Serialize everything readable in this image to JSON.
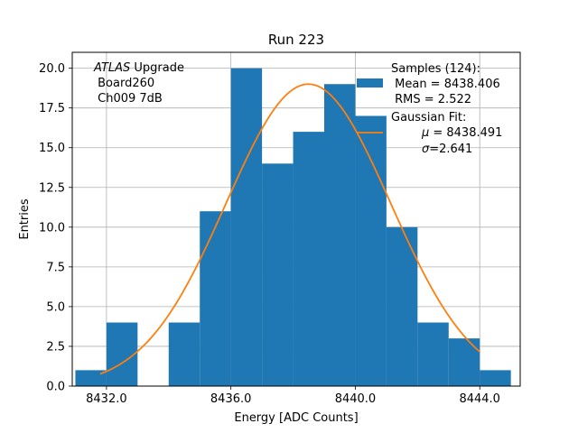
{
  "chart_data": {
    "type": "bar",
    "title": "Run 223",
    "xlabel": "Energy [ADC Counts]",
    "ylabel": "Entries",
    "xlim": [
      8430.9,
      8445.3
    ],
    "ylim": [
      0,
      21
    ],
    "grid": true,
    "x_ticks": [
      8432.0,
      8436.0,
      8440.0,
      8444.0
    ],
    "x_tick_labels": [
      "8432.0",
      "8436.0",
      "8440.0",
      "8444.0"
    ],
    "y_ticks": [
      0,
      2.5,
      5,
      7.5,
      10,
      12.5,
      15,
      17.5,
      20
    ],
    "y_tick_labels": [
      "0.0",
      "2.5",
      "5.0",
      "7.5",
      "10.0",
      "12.5",
      "15.0",
      "17.5",
      "20.0"
    ],
    "bin_edges": [
      8431,
      8432,
      8433,
      8434,
      8435,
      8436,
      8437,
      8438,
      8439,
      8440,
      8441,
      8442,
      8443,
      8444,
      8445
    ],
    "counts": [
      1,
      4,
      0,
      4,
      11,
      20,
      14,
      16,
      19,
      17,
      10,
      4,
      3,
      1
    ],
    "bar_color": "#1f77b4",
    "fit": {
      "name": "Gaussian Fit",
      "mu": 8438.491,
      "sigma": 2.641,
      "amplitude": 19.0,
      "x_range": [
        8431.8,
        8444.0
      ],
      "color": "#ff7f0e"
    },
    "legend": {
      "placement": "top-right",
      "samples_lines": [
        "Samples (124):",
        " Mean = 8438.406",
        " RMS = 2.522"
      ],
      "fit_label": "Gaussian Fit:",
      "fit_mu_symbol": "μ",
      "fit_mu_value": " = 8438.491",
      "fit_sigma_symbol": "σ",
      "fit_sigma_value": "=2.641"
    },
    "annotation": {
      "placement": "top-left",
      "atlas": "ATLAS",
      "upgrade": " Upgrade",
      "board": " Board260",
      "channel": " Ch009 7dB"
    }
  }
}
